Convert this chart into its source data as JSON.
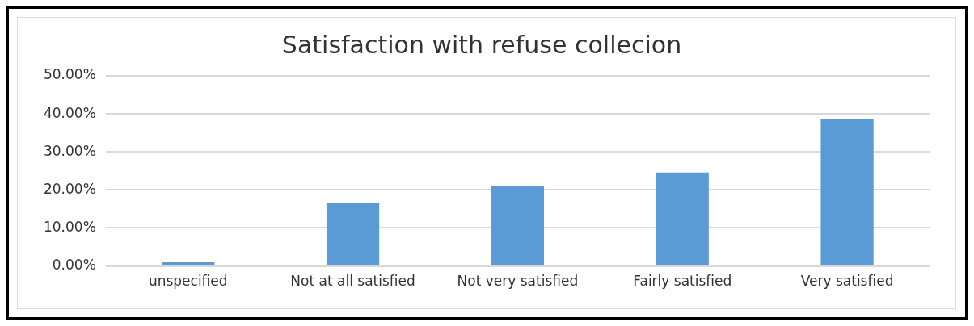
{
  "chart_data": {
    "type": "bar",
    "title": "Satisfaction with refuse collecion",
    "categories": [
      "unspecified",
      "Not at all satisfied",
      "Not very satisfied",
      "Fairly satisfied",
      "Very satisfied"
    ],
    "values": [
      1.0,
      16.5,
      21.0,
      24.6,
      38.6
    ],
    "color": "#5b9bd5",
    "ylim": [
      0,
      50
    ],
    "yticks": [
      {
        "value": 0,
        "label": "0.00%"
      },
      {
        "value": 10,
        "label": "10.00%"
      },
      {
        "value": 20,
        "label": "20.00%"
      },
      {
        "value": 30,
        "label": "30.00%"
      },
      {
        "value": 40,
        "label": "40.00%"
      },
      {
        "value": 50,
        "label": "50.00%"
      }
    ],
    "grid": "y",
    "legend": false
  }
}
